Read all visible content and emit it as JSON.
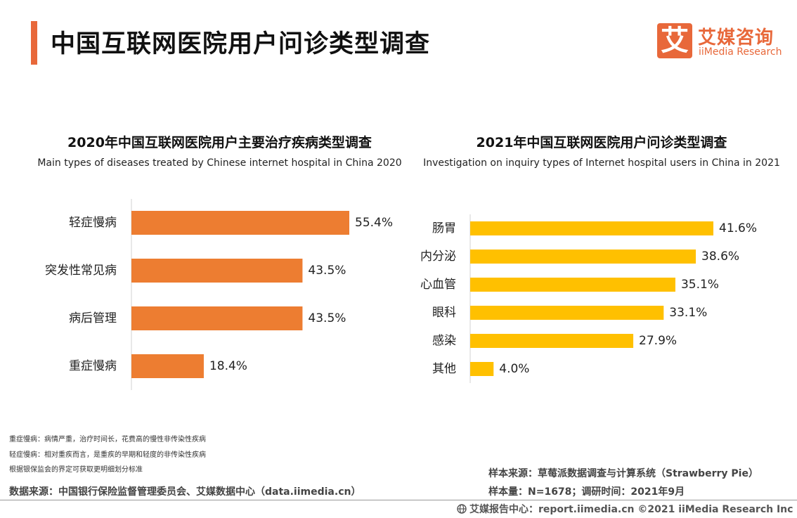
{
  "header": {
    "title": "中国互联网医院用户问诊类型调查",
    "accent_color": "#e8683a"
  },
  "logo": {
    "mark": "艾",
    "cn": "艾媒咨询",
    "en": "iiMedia Research"
  },
  "chart_data": [
    {
      "type": "bar",
      "orientation": "horizontal",
      "title": "2020年中国互联网医院用户主要治疗疾病类型调查",
      "subtitle": "Main types of diseases treated by Chinese internet hospital in China 2020",
      "categories": [
        "轻症慢病",
        "突发性常见病",
        "病后管理",
        "重症慢病"
      ],
      "values": [
        55.4,
        43.5,
        43.5,
        18.4
      ],
      "labels": [
        "55.4%",
        "43.5%",
        "43.5%",
        "18.4%"
      ],
      "unit": "%",
      "color": "#ed7d31",
      "xlim": [
        0,
        55.4
      ]
    },
    {
      "type": "bar",
      "orientation": "horizontal",
      "title": "2021年中国互联网医院用户问诊类型调查",
      "subtitle": "Investigation on inquiry types of Internet hospital users in China in 2021",
      "categories": [
        "肠胃",
        "内分泌",
        "心血管",
        "眼科",
        "感染",
        "其他"
      ],
      "values": [
        41.6,
        38.6,
        35.1,
        33.1,
        27.9,
        4.0
      ],
      "labels": [
        "41.6%",
        "38.6%",
        "35.1%",
        "33.1%",
        "27.9%",
        "4.0%"
      ],
      "unit": "%",
      "color": "#ffc000",
      "xlim": [
        0,
        41.6
      ]
    }
  ],
  "notes": [
    "重症慢病：病情严重，治疗时间长，花费高的慢性非传染性疾病",
    "轻症慢病：相对重疾而言，是重疾的早期和轻度的非传染性疾病",
    "根据银保监会的界定可获取更明细划分标准"
  ],
  "source": {
    "left": "数据来源：中国银行保险监督管理委员会、艾媒数据中心（data.iimedia.cn）",
    "sample_source": "样本来源：草莓派数据调查与计算系统（Strawberry Pie）",
    "sample_size": "样本量：N=1678；调研时间：2021年9月"
  },
  "footer": {
    "text": "艾媒报告中心：report.iimedia.cn   ©2021  iiMedia Research  Inc"
  }
}
